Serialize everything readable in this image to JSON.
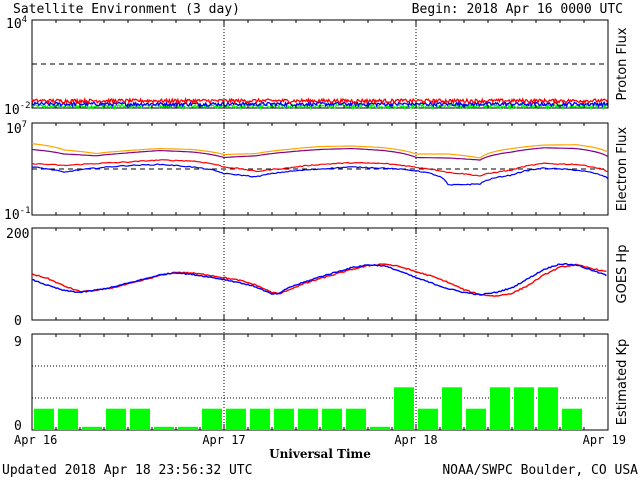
{
  "header": {
    "title": "Satellite Environment (3 day)",
    "begin": "Begin:  2018 Apr 16 0000 UTC"
  },
  "footer": {
    "updated": "Updated 2018 Apr 18 23:56:32 UTC",
    "credit": "NOAA/SWPC Boulder, CO USA"
  },
  "colors": {
    "red": "#ff0000",
    "blue": "#0000ff",
    "green": "#00ff00",
    "orange": "#ffa500",
    "purple": "#800080",
    "black": "#000000"
  },
  "chart_data": [
    {
      "type": "line",
      "panel": "proton",
      "ylabel": "Proton Flux",
      "yscale": "log",
      "ylim": [
        0.01,
        10000
      ],
      "yticks": [
        {
          "base": "10",
          "exp": "4"
        },
        {
          "base": "10",
          "exp": "-2"
        }
      ],
      "xlim": [
        0,
        72
      ],
      "threshold": 10,
      "series": [
        {
          "color": "red",
          "x": [
            0,
            12,
            24,
            36,
            48,
            60,
            72
          ],
          "values": [
            0.03,
            0.03,
            0.03,
            0.03,
            0.03,
            0.03,
            0.03
          ]
        },
        {
          "color": "blue",
          "x": [
            0,
            12,
            24,
            36,
            48,
            60,
            72
          ],
          "values": [
            0.018,
            0.018,
            0.018,
            0.018,
            0.018,
            0.018,
            0.018
          ]
        },
        {
          "color": "green",
          "x": [
            0,
            12,
            24,
            36,
            48,
            60,
            72
          ],
          "values": [
            0.013,
            0.013,
            0.013,
            0.013,
            0.013,
            0.013,
            0.013
          ]
        }
      ]
    },
    {
      "type": "line",
      "panel": "electron",
      "ylabel": "Electron Flux",
      "yscale": "log",
      "ylim": [
        0.1,
        10000000
      ],
      "yticks": [
        {
          "base": "10",
          "exp": "7"
        },
        {
          "base": "10",
          "exp": "-1"
        }
      ],
      "xlim": [
        0,
        72
      ],
      "threshold": 1000,
      "series": [
        {
          "color": "orange",
          "x": [
            0,
            4,
            8,
            12,
            16,
            20,
            24,
            28,
            32,
            36,
            40,
            44,
            48,
            52,
            56,
            60,
            64,
            68,
            72
          ],
          "values": [
            160000,
            45000,
            22000,
            40000,
            60000,
            50000,
            18000,
            22000,
            50000,
            90000,
            100000,
            70000,
            20000,
            20000,
            9000,
            60000,
            120000,
            130000,
            30000
          ]
        },
        {
          "color": "purple",
          "x": [
            0,
            4,
            8,
            12,
            16,
            20,
            24,
            28,
            32,
            36,
            40,
            44,
            48,
            52,
            56,
            60,
            64,
            68,
            72
          ],
          "values": [
            50000,
            20000,
            14000,
            25000,
            40000,
            30000,
            10000,
            14000,
            30000,
            50000,
            60000,
            40000,
            10000,
            9000,
            6000,
            30000,
            70000,
            60000,
            12000
          ]
        },
        {
          "color": "red",
          "x": [
            0,
            4,
            8,
            12,
            16,
            20,
            24,
            28,
            32,
            36,
            40,
            44,
            48,
            52,
            56,
            60,
            64,
            68,
            72
          ],
          "values": [
            3000,
            2000,
            3000,
            4000,
            6000,
            5000,
            1500,
            600,
            1200,
            2500,
            3500,
            3000,
            1400,
            500,
            250,
            800,
            3000,
            2500,
            600
          ]
        },
        {
          "color": "blue",
          "x": [
            0,
            4,
            8,
            12,
            16,
            20,
            24,
            28,
            32,
            36,
            40,
            44,
            48,
            52,
            56,
            60,
            64,
            68,
            72
          ],
          "values": [
            1500,
            500,
            1200,
            2000,
            2500,
            1500,
            400,
            200,
            600,
            1000,
            1500,
            1200,
            700,
            40,
            50,
            300,
            1200,
            800,
            150
          ]
        }
      ]
    },
    {
      "type": "line",
      "panel": "hp",
      "ylabel": "GOES Hp",
      "ylim": [
        0,
        200
      ],
      "yticks": [
        {
          "base": "200"
        },
        {
          "base": "0"
        }
      ],
      "xlim": [
        0,
        72
      ],
      "series": [
        {
          "color": "red",
          "x": [
            0,
            2,
            4,
            6,
            8,
            10,
            12,
            14,
            16,
            18,
            20,
            22,
            24,
            26,
            28,
            30,
            31,
            32,
            34,
            36,
            38,
            40,
            42,
            44,
            46,
            48,
            50,
            52,
            54,
            56,
            58,
            60,
            62,
            64,
            66,
            68,
            70,
            72
          ],
          "values": [
            100,
            90,
            74,
            62,
            64,
            70,
            78,
            87,
            97,
            104,
            102,
            98,
            92,
            86,
            76,
            60,
            57,
            65,
            79,
            90,
            100,
            110,
            118,
            122,
            116,
            105,
            95,
            82,
            66,
            55,
            52,
            58,
            75,
            98,
            115,
            120,
            112,
            104
          ]
        },
        {
          "color": "blue",
          "x": [
            0,
            2,
            4,
            6,
            8,
            10,
            12,
            14,
            16,
            18,
            20,
            22,
            24,
            26,
            28,
            30,
            31,
            32,
            34,
            36,
            38,
            40,
            42,
            44,
            46,
            48,
            50,
            52,
            54,
            56,
            58,
            60,
            62,
            64,
            66,
            68,
            70,
            72
          ],
          "values": [
            88,
            75,
            64,
            60,
            65,
            71,
            80,
            89,
            98,
            103,
            99,
            94,
            88,
            81,
            72,
            56,
            58,
            70,
            82,
            94,
            104,
            114,
            120,
            118,
            106,
            92,
            80,
            68,
            60,
            55,
            60,
            70,
            90,
            110,
            122,
            120,
            108,
            96
          ]
        }
      ]
    },
    {
      "type": "bar",
      "panel": "kp",
      "ylabel": "Estimated Kp",
      "ylim": [
        0,
        9
      ],
      "yticks": [
        {
          "base": "9"
        },
        {
          "base": "0"
        }
      ],
      "xlim": [
        0,
        72
      ],
      "color": "green",
      "values": [
        2,
        2,
        0.3,
        2,
        2,
        0.3,
        0.3,
        2,
        2,
        2,
        2,
        2,
        2,
        2,
        0.3,
        4,
        2,
        4,
        2,
        4,
        4,
        4,
        2,
        0
      ]
    }
  ],
  "xaxis": {
    "label": "Universal Time",
    "ticks": [
      "Apr 16",
      "Apr 17",
      "Apr 18",
      "Apr 19"
    ]
  }
}
